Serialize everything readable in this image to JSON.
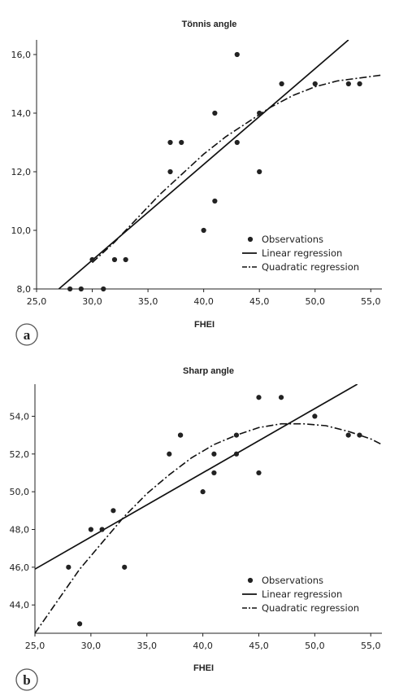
{
  "chart_data": [
    {
      "type": "scatter",
      "panel_label": "a",
      "title": "Tönnis angle",
      "xlabel": "FHEI",
      "ylabel": "",
      "xlim": [
        25.0,
        56.0
      ],
      "ylim": [
        8.0,
        16.5
      ],
      "x_ticks": [
        25.0,
        30.0,
        35.0,
        40.0,
        45.0,
        50.0,
        55.0
      ],
      "y_ticks": [
        8.0,
        10.0,
        12.0,
        14.0,
        16.0
      ],
      "x_tick_labels": [
        "25,0",
        "30,0",
        "35,0",
        "40,0",
        "45,0",
        "50,0",
        "55,0"
      ],
      "y_tick_labels": [
        "8,0",
        "10,0",
        "12,0",
        "14,0",
        "16,0"
      ],
      "series": [
        {
          "name": "Observations",
          "kind": "points",
          "x": [
            28,
            29,
            30,
            31,
            32,
            33,
            37,
            37,
            38,
            40,
            41,
            41,
            43,
            43,
            45,
            45,
            47,
            50,
            53,
            54
          ],
          "y": [
            8,
            8,
            9,
            8,
            9,
            9,
            12,
            13,
            13,
            10,
            11,
            14,
            13,
            16,
            12,
            14,
            15,
            15,
            15,
            15
          ]
        },
        {
          "name": "Linear regression",
          "kind": "line",
          "x": [
            27.0,
            53.0
          ],
          "y": [
            8.0,
            16.5
          ]
        },
        {
          "name": "Quadratic regression",
          "kind": "curve",
          "x": [
            30.0,
            32.0,
            34.0,
            36.0,
            38.0,
            40.0,
            42.0,
            44.0,
            46.0,
            48.0,
            50.0,
            52.0,
            54.0,
            56.0
          ],
          "y": [
            8.9,
            9.6,
            10.4,
            11.2,
            11.9,
            12.6,
            13.2,
            13.7,
            14.2,
            14.6,
            14.9,
            15.1,
            15.2,
            15.3
          ]
        }
      ],
      "legend": [
        "Observations",
        "Linear regression",
        "Quadratic regression"
      ],
      "legend_position": "lower-right",
      "grid": false
    },
    {
      "type": "scatter",
      "panel_label": "b",
      "title": "Sharp angle",
      "xlabel": "FHEI",
      "ylabel": "",
      "xlim": [
        25.0,
        56.0
      ],
      "ylim": [
        42.5,
        55.7
      ],
      "x_ticks": [
        25.0,
        30.0,
        35.0,
        40.0,
        45.0,
        50.0,
        55.0
      ],
      "y_ticks": [
        44.0,
        46.0,
        48.0,
        50.0,
        52.0,
        54.0
      ],
      "x_tick_labels": [
        "25,0",
        "30,0",
        "35,0",
        "40,0",
        "45,0",
        "50,0",
        "55,0"
      ],
      "y_tick_labels": [
        "44,0",
        "46,0",
        "48,0",
        "50,0",
        "52,0",
        "54,0"
      ],
      "series": [
        {
          "name": "Observations",
          "kind": "points",
          "x": [
            28,
            29,
            30,
            31,
            32,
            33,
            37,
            38,
            38,
            40,
            41,
            41,
            43,
            43,
            45,
            45,
            47,
            50,
            53,
            54
          ],
          "y": [
            46,
            43,
            48,
            48,
            49,
            46,
            52,
            53,
            53,
            50,
            51,
            52,
            52,
            53,
            51,
            55,
            55,
            54,
            53,
            53
          ]
        },
        {
          "name": "Linear regression",
          "kind": "line",
          "x": [
            25.0,
            53.8
          ],
          "y": [
            45.9,
            55.7
          ]
        },
        {
          "name": "Quadratic regression",
          "kind": "curve",
          "x": [
            25.0,
            27.0,
            29.0,
            31.0,
            33.0,
            35.0,
            37.0,
            39.0,
            41.0,
            43.0,
            45.0,
            47.0,
            49.0,
            51.0,
            53.0,
            55.0,
            56.0
          ],
          "y": [
            42.5,
            44.2,
            45.9,
            47.3,
            48.7,
            49.9,
            50.9,
            51.8,
            52.5,
            53.0,
            53.4,
            53.6,
            53.6,
            53.5,
            53.2,
            52.8,
            52.5
          ]
        }
      ],
      "legend": [
        "Observations",
        "Linear regression",
        "Quadratic regression"
      ],
      "legend_position": "lower-right",
      "grid": false
    }
  ]
}
